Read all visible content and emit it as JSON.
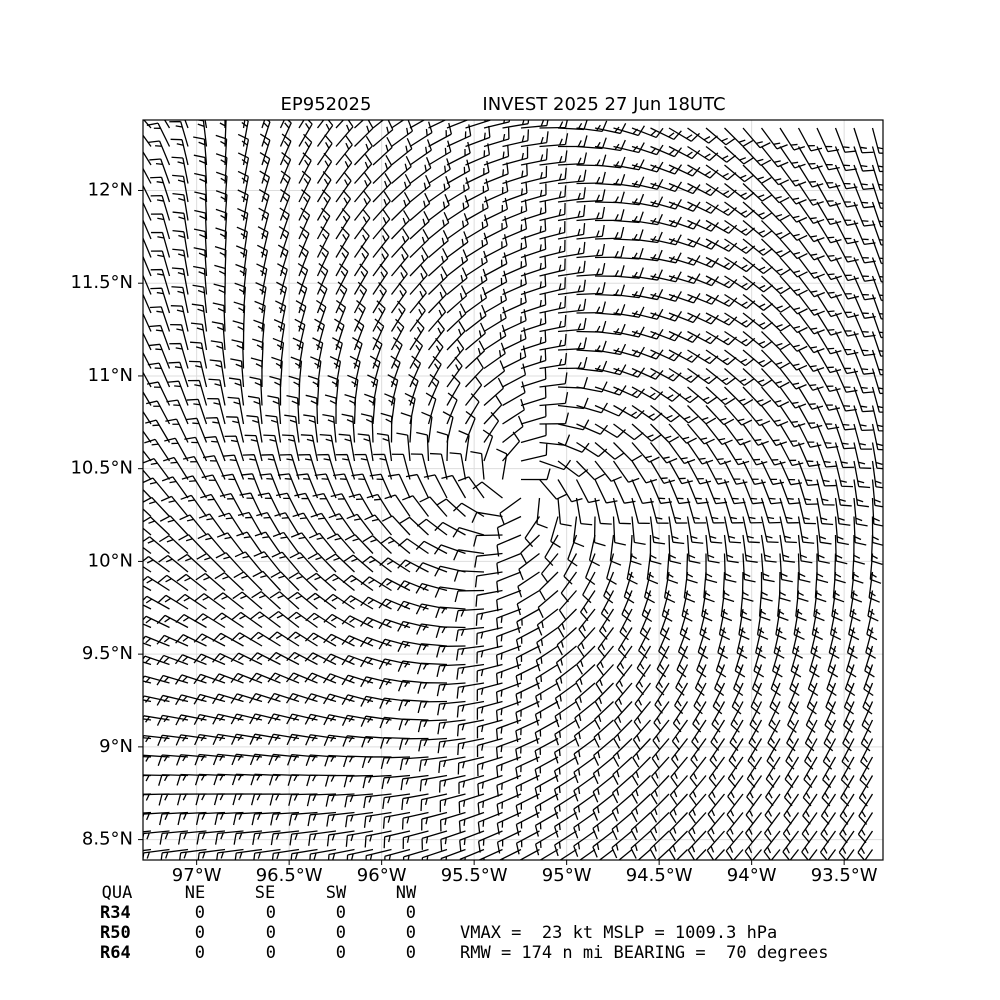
{
  "header": {
    "storm_id": "EP952025",
    "title": "INVEST 2025 27 Jun 18UTC"
  },
  "map": {
    "xlim": [
      -97.29,
      -93.29
    ],
    "ylim": [
      8.39,
      12.38
    ],
    "grid": true,
    "xticks": [
      {
        "value": -97,
        "label": "97°W"
      },
      {
        "value": -96.5,
        "label": "96.5°W"
      },
      {
        "value": -96,
        "label": "96°W"
      },
      {
        "value": -95.5,
        "label": "95.5°W"
      },
      {
        "value": -95,
        "label": "95°W"
      },
      {
        "value": -94.5,
        "label": "94.5°W"
      },
      {
        "value": -94,
        "label": "94°W"
      },
      {
        "value": -93.5,
        "label": "93.5°W"
      }
    ],
    "yticks": [
      {
        "value": 8.5,
        "label": "8.5°N"
      },
      {
        "value": 9,
        "label": "9°N"
      },
      {
        "value": 9.5,
        "label": "9.5°N"
      },
      {
        "value": 10,
        "label": "10°N"
      },
      {
        "value": 10.5,
        "label": "10.5°N"
      },
      {
        "value": 11,
        "label": "11°N"
      },
      {
        "value": 11.5,
        "label": "11.5°N"
      },
      {
        "value": 12,
        "label": "12°N"
      }
    ]
  },
  "table": {
    "header": [
      "QUA",
      "NE",
      "SE",
      "SW",
      "NW"
    ],
    "rows": [
      [
        "R34",
        "0",
        "0",
        "0",
        "0"
      ],
      [
        "R50",
        "0",
        "0",
        "0",
        "0"
      ],
      [
        "R64",
        "0",
        "0",
        "0",
        "0"
      ]
    ]
  },
  "stats": [
    "VMAX =  23 kt MSLP = 1009.3 hPa",
    "RMW = 174 n mi BEARING =  70 degrees"
  ]
}
